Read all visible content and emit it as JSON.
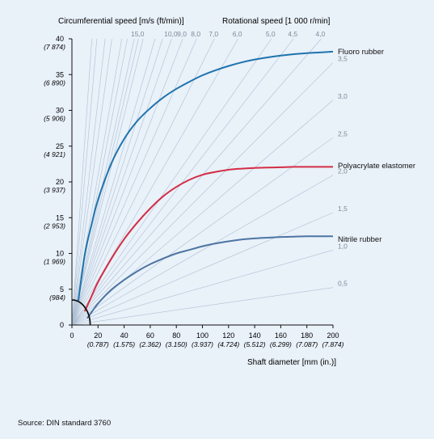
{
  "chart_data": {
    "type": "line",
    "title": "",
    "ylabel": "Circumferential speed [m/s (ft/min)]",
    "xlabel": "Shaft diameter [mm (in.)]",
    "rotational_label": "Rotational speed [1 000 r/min]",
    "xlim": [
      0,
      200
    ],
    "ylim": [
      0,
      40
    ],
    "x_ticks": [
      "0",
      "20",
      "40",
      "60",
      "80",
      "100",
      "120",
      "140",
      "160",
      "180",
      "200"
    ],
    "x_ticks_secondary": [
      "(0.787)",
      "(1.575)",
      "(2.362)",
      "(3.150)",
      "(3.937)",
      "(4.724)",
      "(5.512)",
      "(6.299)",
      "(7.087)",
      "(7.874)"
    ],
    "y_ticks": [
      "0",
      "5",
      "10",
      "15",
      "20",
      "25",
      "30",
      "35",
      "40"
    ],
    "y_ticks_secondary": [
      "(984)",
      "(1 969)",
      "(2 953)",
      "(3 937)",
      "(4 921)",
      "(5 906)",
      "(6 890)",
      "(7 874)"
    ],
    "rpm_top_labels": [
      {
        "rpm": 15,
        "label": "15,0"
      },
      {
        "rpm": 10,
        "label": "10,0"
      },
      {
        "rpm": 9,
        "label": "9,0"
      },
      {
        "rpm": 8,
        "label": "8,0"
      },
      {
        "rpm": 7,
        "label": "7,0"
      },
      {
        "rpm": 6,
        "label": "6,0"
      },
      {
        "rpm": 5,
        "label": "5,0"
      },
      {
        "rpm": 4.5,
        "label": "4,5"
      },
      {
        "rpm": 4,
        "label": "4,0"
      }
    ],
    "rpm_right_labels": [
      {
        "rpm": 3.5,
        "label": "3,5"
      },
      {
        "rpm": 3,
        "label": "3,0"
      },
      {
        "rpm": 2.5,
        "label": "2,5"
      },
      {
        "rpm": 2,
        "label": "2,0"
      },
      {
        "rpm": 1.5,
        "label": "1,5"
      },
      {
        "rpm": 1,
        "label": "1,0"
      },
      {
        "rpm": 0.5,
        "label": "0,5"
      }
    ],
    "rpm_extra_lines": [
      50,
      40,
      30,
      25,
      20,
      18,
      16,
      14,
      12,
      11
    ],
    "series": [
      {
        "name": "Fluoro rubber",
        "color": "#1f73ad",
        "x": [
          5,
          10,
          15,
          20,
          30,
          40,
          50,
          60,
          70,
          80,
          90,
          100,
          110,
          120,
          130,
          140,
          150,
          160,
          170,
          180,
          190,
          200
        ],
        "y": [
          3.5,
          10.0,
          14.0,
          17.5,
          22.5,
          26.0,
          28.5,
          30.3,
          31.8,
          33.0,
          34.0,
          34.9,
          35.6,
          36.2,
          36.7,
          37.1,
          37.4,
          37.65,
          37.85,
          38.0,
          38.1,
          38.2
        ]
      },
      {
        "name": "Polyacrylate elastomer",
        "color": "#d42d45",
        "x": [
          10,
          15,
          20,
          30,
          40,
          50,
          60,
          70,
          80,
          90,
          100,
          110,
          120,
          130,
          140,
          150,
          160,
          170,
          180,
          190,
          200
        ],
        "y": [
          2.0,
          4.0,
          6.0,
          9.2,
          12.0,
          14.3,
          16.3,
          18.0,
          19.3,
          20.3,
          21.0,
          21.4,
          21.7,
          21.85,
          21.95,
          22.0,
          22.05,
          22.1,
          22.1,
          22.1,
          22.1
        ]
      },
      {
        "name": "Nitrile rubber",
        "color": "#4d74a3",
        "x": [
          12,
          20,
          30,
          40,
          50,
          60,
          70,
          80,
          90,
          100,
          110,
          120,
          130,
          140,
          150,
          160,
          170,
          180,
          190,
          200
        ],
        "y": [
          1.0,
          3.0,
          4.9,
          6.3,
          7.5,
          8.5,
          9.3,
          10.0,
          10.5,
          11.0,
          11.4,
          11.7,
          11.95,
          12.1,
          12.2,
          12.3,
          12.35,
          12.4,
          12.4,
          12.4
        ]
      }
    ],
    "limit_arc": {
      "color": "#111111"
    },
    "grid_color": "#aebfd3",
    "axis_color": "#111111"
  },
  "source": "Source: DIN standard 3760"
}
